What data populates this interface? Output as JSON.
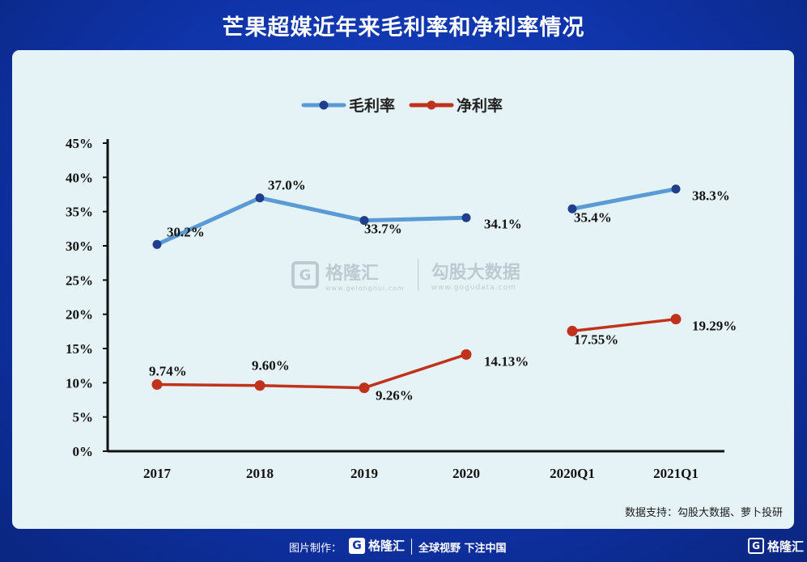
{
  "title": "芒果超媒近年来毛利率和净利率情况",
  "source": "数据支持：勾股大数据、萝卜投研",
  "watermark": {
    "logo_letter": "G",
    "brand": "格隆汇",
    "brand_url": "www.gelonghui.com",
    "data_brand": "勾股大数据",
    "data_url": "www.gogudata.com"
  },
  "footer": {
    "made_by": "图片制作：",
    "logo_letter": "G",
    "brand": "格隆汇",
    "slogan": "全球视野 下注中国",
    "corner_brand": "格隆汇"
  },
  "colors": {
    "gross": "#5b9bd5",
    "gross_marker": "#1f3e8c",
    "net": "#c0321b",
    "net_marker": "#c0321b"
  },
  "chart_data": {
    "type": "line",
    "categories": [
      "2017",
      "2018",
      "2019",
      "2020",
      "2020Q1",
      "2021Q1"
    ],
    "yticks": [
      "0%",
      "5%",
      "10%",
      "15%",
      "20%",
      "25%",
      "30%",
      "35%",
      "40%",
      "45%"
    ],
    "ylim": [
      0,
      45
    ],
    "legend_position": "top-center",
    "grid": false,
    "series": [
      {
        "name": "毛利率",
        "values": [
          30.2,
          37.0,
          33.7,
          34.1,
          35.4,
          38.3
        ],
        "labels": [
          "30.2%",
          "37.0%",
          "33.7%",
          "34.1%",
          "35.4%",
          "38.3%"
        ],
        "segments": [
          [
            0,
            3
          ],
          [
            4,
            5
          ]
        ]
      },
      {
        "name": "净利率",
        "values": [
          9.74,
          9.6,
          9.26,
          14.13,
          17.55,
          19.29
        ],
        "labels": [
          "9.74%",
          "9.60%",
          "9.26%",
          "14.13%",
          "17.55%",
          "19.29%"
        ],
        "segments": [
          [
            0,
            3
          ],
          [
            4,
            5
          ]
        ]
      }
    ]
  }
}
